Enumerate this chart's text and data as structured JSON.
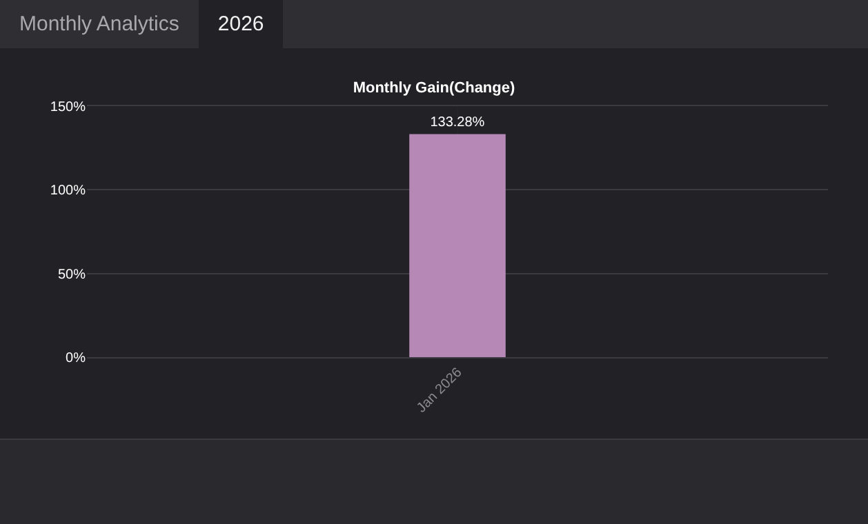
{
  "chart_data": {
    "type": "bar",
    "title": "Monthly Gain(Change)",
    "annotations": [
      "Monthly Analytics",
      "2026"
    ],
    "categories": [
      "Jan 2026"
    ],
    "values": [
      133.28
    ],
    "color": "#b588b5",
    "value_labels": [
      "133.28%"
    ],
    "ylim": [
      0,
      150
    ],
    "yticks": [
      {
        "value": 0,
        "label": "0%"
      },
      {
        "value": 50,
        "label": "50%"
      },
      {
        "value": 100,
        "label": "100%"
      },
      {
        "value": 150,
        "label": "150%"
      }
    ],
    "grid": true
  }
}
